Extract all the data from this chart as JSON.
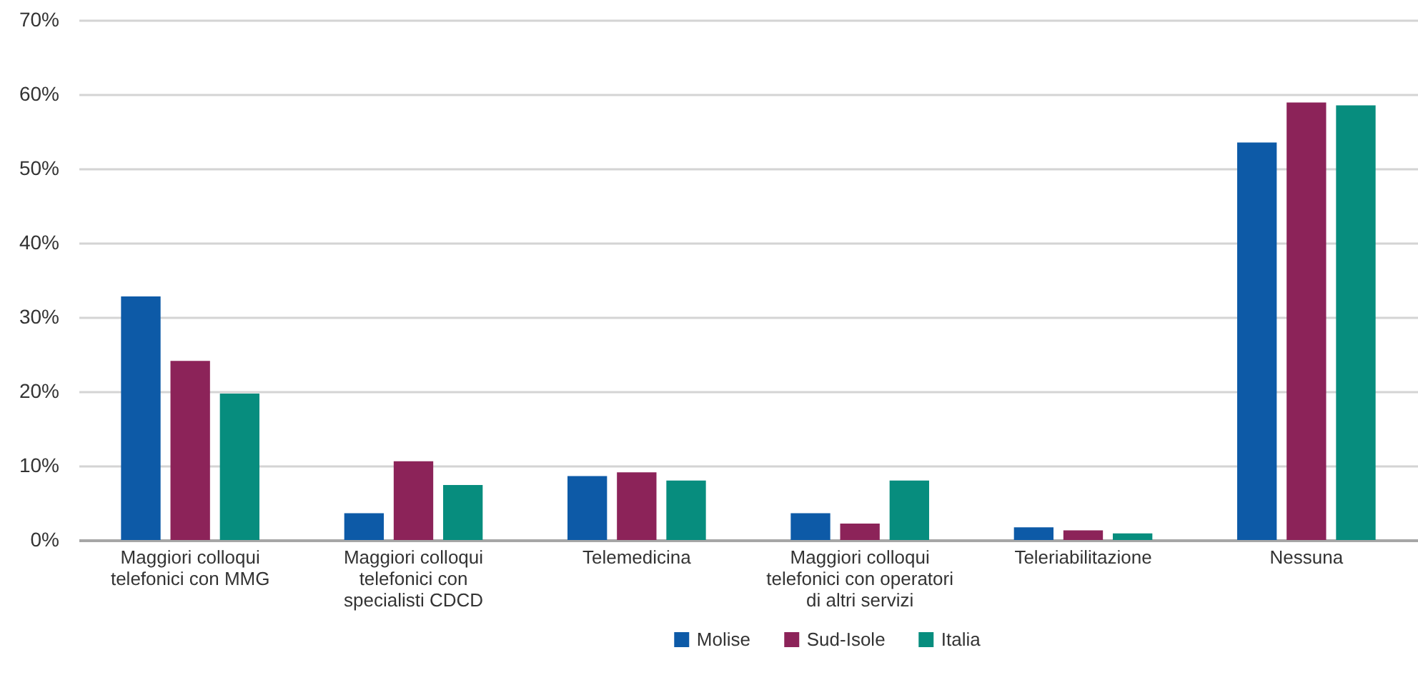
{
  "chart_data": {
    "type": "bar",
    "categories": [
      "Maggiori colloqui telefonici con MMG",
      "Maggiori colloqui telefonici con specialisti CDCD",
      "Telemedicina",
      "Maggiori colloqui telefonici con operatori di altri servizi",
      "Teleriabilitazione",
      "Nessuna"
    ],
    "series": [
      {
        "name": "Molise",
        "color": "#0d5aa7",
        "values": [
          32.8,
          3.6,
          8.6,
          3.6,
          1.7,
          53.5
        ]
      },
      {
        "name": "Sud-Isole",
        "color": "#8c2359",
        "values": [
          24.1,
          10.6,
          9.1,
          2.2,
          1.3,
          58.9
        ]
      },
      {
        "name": "Italia",
        "color": "#078d7e",
        "values": [
          19.7,
          7.4,
          8.0,
          8.0,
          0.9,
          58.5
        ]
      }
    ],
    "ylim": [
      0,
      70
    ],
    "yticks": [
      {
        "value": 0,
        "label": "0%"
      },
      {
        "value": 10,
        "label": "10%"
      },
      {
        "value": 20,
        "label": "20%"
      },
      {
        "value": 30,
        "label": "30%"
      },
      {
        "value": 40,
        "label": "40%"
      },
      {
        "value": 50,
        "label": "50%"
      },
      {
        "value": 60,
        "label": "60%"
      },
      {
        "value": 70,
        "label": "70%"
      }
    ],
    "grid": "y",
    "legend": "bottom"
  }
}
